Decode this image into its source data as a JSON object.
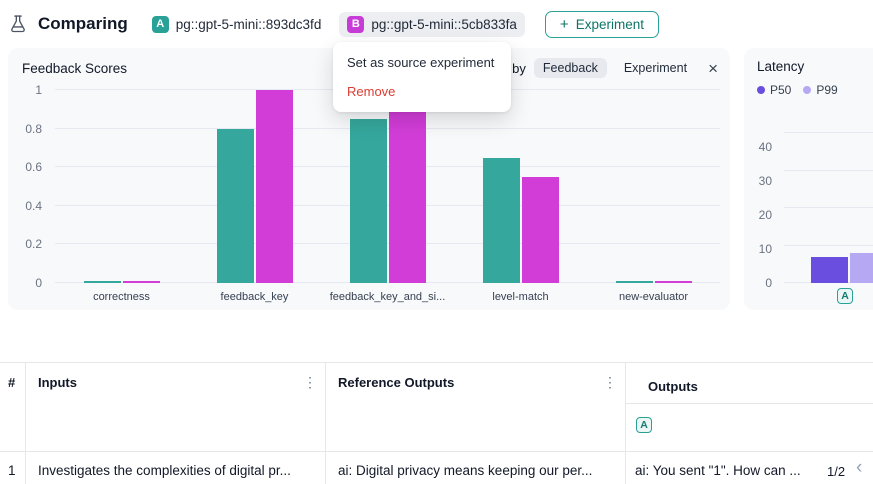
{
  "colors": {
    "teal": "#2aa197",
    "magenta": "#c73cd6",
    "danger": "#dc3c31"
  },
  "header": {
    "title": "Comparing",
    "experiments": [
      {
        "badge": "A",
        "name": "pg::gpt-5-mini::893dc3fd"
      },
      {
        "badge": "B",
        "name": "pg::gpt-5-mini::5cb833fa"
      }
    ],
    "add_plus": "+",
    "add_experiment_label": "Experiment"
  },
  "context_menu": {
    "items": [
      {
        "label": "Set as source experiment"
      },
      {
        "label": "Remove"
      }
    ]
  },
  "feedback_panel": {
    "title": "Feedback Scores",
    "group_by_label": "up by",
    "chips": [
      "Feedback",
      "Experiment"
    ],
    "close_icon": "×"
  },
  "latency_panel": {
    "title": "Latency",
    "legend": [
      {
        "label": "P50"
      },
      {
        "label": "P99"
      }
    ],
    "x_badge": "A"
  },
  "chart_data": [
    {
      "type": "bar",
      "title": "Feedback Scores",
      "categories": [
        "correctness",
        "feedback_key",
        "feedback_key_and_si...",
        "level-match",
        "new-evaluator"
      ],
      "series": [
        {
          "name": "A",
          "color": "#35a79c",
          "values": [
            0.01,
            0.8,
            0.85,
            0.65,
            0.01
          ]
        },
        {
          "name": "B",
          "color": "#d23dd8",
          "values": [
            0.01,
            1.0,
            0.97,
            0.55,
            0.01
          ]
        }
      ],
      "ylim": [
        0,
        1
      ],
      "yticks": [
        0,
        0.2,
        0.4,
        0.6,
        0.8,
        1
      ],
      "grid": true,
      "legend_position": "none"
    },
    {
      "type": "bar",
      "title": "Latency",
      "categories": [
        "A"
      ],
      "series": [
        {
          "name": "P50",
          "color": "#6a4ee0",
          "values": [
            7
          ]
        },
        {
          "name": "P99",
          "color": "#b7a8f3",
          "values": [
            8
          ]
        }
      ],
      "ylim": [
        0,
        44
      ],
      "yticks": [
        0,
        10,
        20,
        30,
        40
      ],
      "grid": true,
      "legend_position": "top-left"
    }
  ],
  "table": {
    "columns": [
      {
        "label": "#"
      },
      {
        "label": "Inputs",
        "menu_icon": "⋮"
      },
      {
        "label": "Reference Outputs",
        "menu_icon": "⋮"
      },
      {
        "label": "Outputs",
        "badge": "A"
      }
    ],
    "rows": [
      {
        "num": "1",
        "inputs": "Investigates the complexities of digital pr...",
        "reference_outputs": "ai: Digital privacy means keeping our per...",
        "outputs": "ai: You sent \"1\". How can ...",
        "pagination": "1/2",
        "prev_icon": "‹"
      }
    ]
  }
}
